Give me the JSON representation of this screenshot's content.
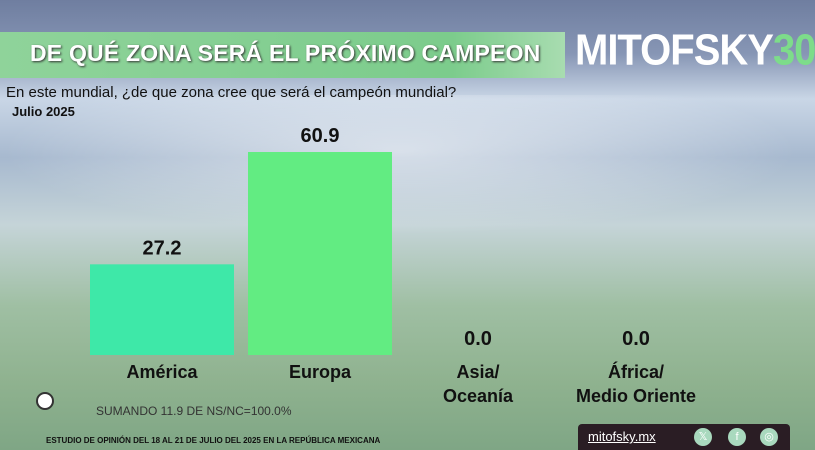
{
  "header": {
    "title": "DE QUÉ ZONA SERÁ EL PRÓXIMO CAMPEON",
    "logo": "MITOFSKY30"
  },
  "question": "En este mundial, ¿de que zona cree que será el campeón mundial?",
  "period": "Julio 2025",
  "note": "SUMANDO 11.9 DE NS/NC=100.0%",
  "footer": "ESTUDIO DE OPINIÓN DEL 18 AL 21 DE JULIO DEL 2025 EN LA REPÚBLICA MEXICANA",
  "social": {
    "site": "mitofsky.mx",
    "icons": [
      "x-icon",
      "facebook-icon",
      "instagram-icon"
    ]
  },
  "chart_data": {
    "type": "bar",
    "title": "DE QUÉ ZONA SERÁ EL PRÓXIMO CAMPEON",
    "categories": [
      "América",
      "Europa",
      "Asia/ Oceanía",
      "África/ Medio Oriente"
    ],
    "category_lines": [
      [
        "América"
      ],
      [
        "Europa"
      ],
      [
        "Asia/",
        "Oceanía"
      ],
      [
        "África/",
        "Medio Oriente"
      ]
    ],
    "values": [
      27.2,
      60.9,
      0.0,
      0.0
    ],
    "labels": [
      "27.2",
      "60.9",
      "0.0",
      "0.0"
    ],
    "colors": [
      "#3ee8a8",
      "#62ec82",
      "#62ec82",
      "#62ec82"
    ],
    "ylim": [
      0,
      65
    ],
    "xlabel": "",
    "ylabel": ""
  }
}
